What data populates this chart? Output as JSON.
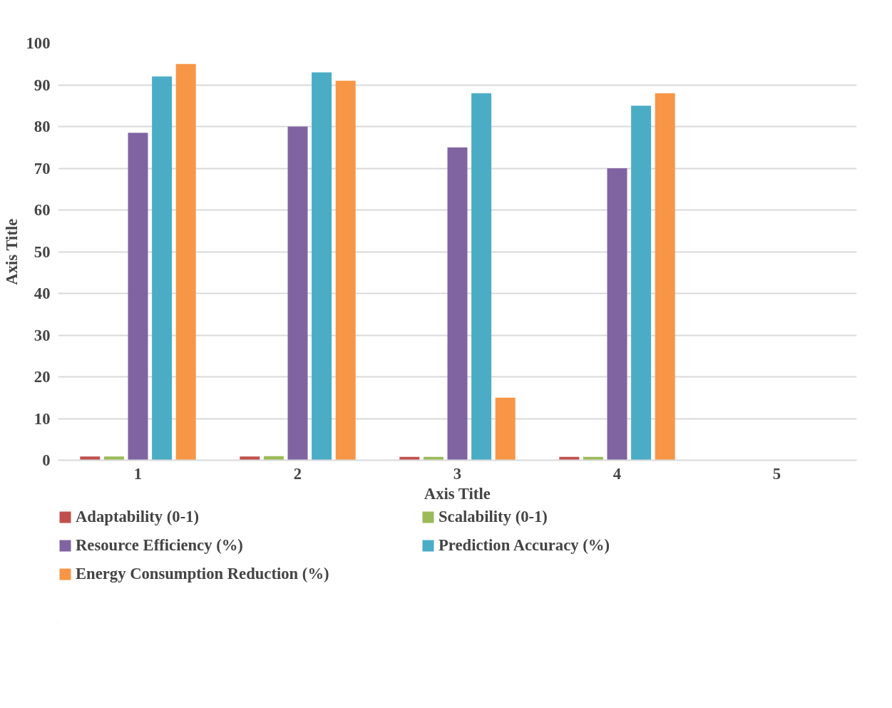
{
  "chart_data": {
    "type": "bar",
    "xlabel": "Axis Title",
    "ylabel": "Axis Title",
    "categories": [
      "1",
      "2",
      "3",
      "4",
      "5"
    ],
    "series": [
      {
        "name": "Adaptability (0-1)",
        "color": "#c0504d",
        "values": [
          0.9,
          0.9,
          0.8,
          0.8,
          null
        ]
      },
      {
        "name": "Scalability (0-1)",
        "color": "#9bbb59",
        "values": [
          0.9,
          1,
          0.8,
          0.8,
          null
        ]
      },
      {
        "name": "Resource Efficiency (%)",
        "color": "#8064a2",
        "values": [
          78.5,
          80,
          75,
          70,
          null
        ]
      },
      {
        "name": "Prediction Accuracy (%)",
        "color": "#4bacc6",
        "values": [
          92,
          93,
          88,
          85,
          null
        ]
      },
      {
        "name": "Energy Consumption Reduction (%)",
        "color": "#f79646",
        "values": [
          95,
          91,
          15,
          88,
          null
        ]
      }
    ],
    "ylim": [
      0,
      100
    ],
    "yticks": [
      0,
      10,
      20,
      30,
      40,
      50,
      60,
      70,
      80,
      90,
      100
    ],
    "grid": "y",
    "legend": "bottom"
  }
}
